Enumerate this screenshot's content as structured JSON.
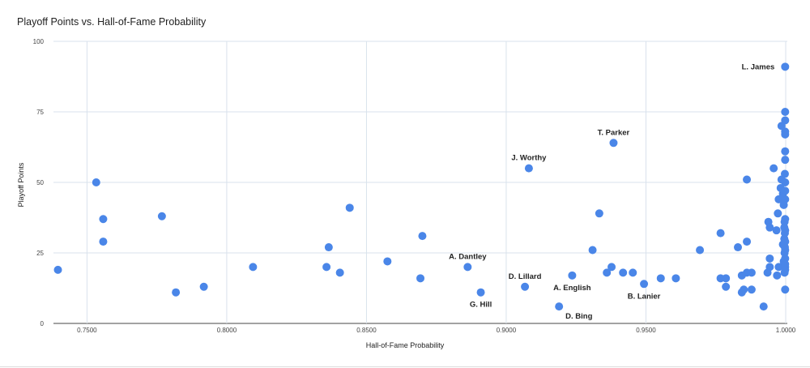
{
  "chart_data": {
    "type": "scatter",
    "title": "Playoff Points vs. Hall-of-Fame Probability",
    "xlabel": "Hall-of-Fame Probability",
    "ylabel": "Playoff Points",
    "xlim": [
      0.738,
      1.0
    ],
    "ylim": [
      0,
      100
    ],
    "x_ticks": [
      "0.7500",
      "0.8000",
      "0.8500",
      "0.9000",
      "0.9500",
      "1.0000"
    ],
    "x_tick_values": [
      0.75,
      0.8,
      0.85,
      0.9,
      0.95,
      1.0
    ],
    "y_ticks": [
      "0",
      "25",
      "50",
      "75",
      "100"
    ],
    "y_tick_values": [
      0,
      25,
      50,
      75,
      100
    ],
    "grid": true,
    "legend": "none",
    "point_color": "#4a86e8",
    "points": [
      {
        "x": 0.7396,
        "y": 19
      },
      {
        "x": 0.7533,
        "y": 50
      },
      {
        "x": 0.7558,
        "y": 37
      },
      {
        "x": 0.7558,
        "y": 29
      },
      {
        "x": 0.7768,
        "y": 38
      },
      {
        "x": 0.7818,
        "y": 11
      },
      {
        "x": 0.7918,
        "y": 13
      },
      {
        "x": 0.8094,
        "y": 20
      },
      {
        "x": 0.8357,
        "y": 20
      },
      {
        "x": 0.8365,
        "y": 27
      },
      {
        "x": 0.8405,
        "y": 18
      },
      {
        "x": 0.844,
        "y": 41
      },
      {
        "x": 0.8575,
        "y": 22
      },
      {
        "x": 0.8693,
        "y": 16
      },
      {
        "x": 0.87,
        "y": 31
      },
      {
        "x": 0.8862,
        "y": 20
      },
      {
        "x": 0.8909,
        "y": 11
      },
      {
        "x": 0.9067,
        "y": 13
      },
      {
        "x": 0.9081,
        "y": 55
      },
      {
        "x": 0.9189,
        "y": 6
      },
      {
        "x": 0.9236,
        "y": 17
      },
      {
        "x": 0.9309,
        "y": 26
      },
      {
        "x": 0.9333,
        "y": 39
      },
      {
        "x": 0.936,
        "y": 18
      },
      {
        "x": 0.9377,
        "y": 20
      },
      {
        "x": 0.9384,
        "y": 64
      },
      {
        "x": 0.9418,
        "y": 18
      },
      {
        "x": 0.9453,
        "y": 18
      },
      {
        "x": 0.9493,
        "y": 14
      },
      {
        "x": 0.9553,
        "y": 16
      },
      {
        "x": 0.9607,
        "y": 16
      },
      {
        "x": 0.9693,
        "y": 26
      },
      {
        "x": 0.9767,
        "y": 32
      },
      {
        "x": 0.9767,
        "y": 16
      },
      {
        "x": 0.9786,
        "y": 16
      },
      {
        "x": 0.9786,
        "y": 13
      },
      {
        "x": 0.9829,
        "y": 27
      },
      {
        "x": 0.9843,
        "y": 17
      },
      {
        "x": 0.9843,
        "y": 11
      },
      {
        "x": 0.985,
        "y": 12
      },
      {
        "x": 0.9861,
        "y": 51
      },
      {
        "x": 0.9861,
        "y": 29
      },
      {
        "x": 0.9861,
        "y": 18
      },
      {
        "x": 0.9878,
        "y": 18
      },
      {
        "x": 0.9878,
        "y": 12
      },
      {
        "x": 0.9921,
        "y": 6
      },
      {
        "x": 0.9935,
        "y": 18
      },
      {
        "x": 0.9938,
        "y": 36
      },
      {
        "x": 0.9943,
        "y": 34
      },
      {
        "x": 0.9943,
        "y": 23
      },
      {
        "x": 0.9943,
        "y": 20
      },
      {
        "x": 0.9957,
        "y": 55
      },
      {
        "x": 0.9967,
        "y": 33
      },
      {
        "x": 0.9969,
        "y": 17
      },
      {
        "x": 0.9972,
        "y": 39
      },
      {
        "x": 0.9975,
        "y": 44
      },
      {
        "x": 0.9975,
        "y": 20
      },
      {
        "x": 0.9982,
        "y": 48
      },
      {
        "x": 0.9985,
        "y": 70
      },
      {
        "x": 0.9985,
        "y": 51
      },
      {
        "x": 0.999,
        "y": 46
      },
      {
        "x": 0.999,
        "y": 28
      },
      {
        "x": 0.9993,
        "y": 42
      },
      {
        "x": 0.9993,
        "y": 22
      },
      {
        "x": 0.9995,
        "y": 34
      },
      {
        "x": 0.9995,
        "y": 30
      },
      {
        "x": 0.9996,
        "y": 36
      },
      {
        "x": 0.9996,
        "y": 25
      },
      {
        "x": 0.9996,
        "y": 18
      },
      {
        "x": 0.9997,
        "y": 53
      },
      {
        "x": 0.9997,
        "y": 32
      },
      {
        "x": 0.9997,
        "y": 27
      },
      {
        "x": 0.9998,
        "y": 91
      },
      {
        "x": 0.9998,
        "y": 75
      },
      {
        "x": 0.9998,
        "y": 72
      },
      {
        "x": 0.9998,
        "y": 68
      },
      {
        "x": 0.9998,
        "y": 67
      },
      {
        "x": 0.9998,
        "y": 61
      },
      {
        "x": 0.9998,
        "y": 58
      },
      {
        "x": 0.9998,
        "y": 50
      },
      {
        "x": 0.9998,
        "y": 47
      },
      {
        "x": 0.9998,
        "y": 44
      },
      {
        "x": 0.9998,
        "y": 37
      },
      {
        "x": 0.9998,
        "y": 33
      },
      {
        "x": 0.9998,
        "y": 29
      },
      {
        "x": 0.9998,
        "y": 26
      },
      {
        "x": 0.9998,
        "y": 23
      },
      {
        "x": 0.9998,
        "y": 21
      },
      {
        "x": 0.9998,
        "y": 20
      },
      {
        "x": 0.9998,
        "y": 19
      },
      {
        "x": 0.9998,
        "y": 12
      }
    ],
    "annotations": [
      {
        "text": "L. James",
        "x": 0.9998,
        "y": 91,
        "pos": "left"
      },
      {
        "text": "T. Parker",
        "x": 0.9384,
        "y": 64,
        "pos": "above"
      },
      {
        "text": "J. Worthy",
        "x": 0.9081,
        "y": 55,
        "pos": "above"
      },
      {
        "text": "A. Dantley",
        "x": 0.8862,
        "y": 20,
        "pos": "above"
      },
      {
        "text": "D. Lillard",
        "x": 0.9067,
        "y": 13,
        "pos": "above"
      },
      {
        "text": "G. Hill",
        "x": 0.8909,
        "y": 11,
        "pos": "below"
      },
      {
        "text": "A. English",
        "x": 0.9236,
        "y": 17,
        "pos": "below"
      },
      {
        "text": "D. Bing",
        "x": 0.9189,
        "y": 6,
        "pos": "below-right"
      },
      {
        "text": "B. Lanier",
        "x": 0.9493,
        "y": 14,
        "pos": "below"
      }
    ]
  }
}
